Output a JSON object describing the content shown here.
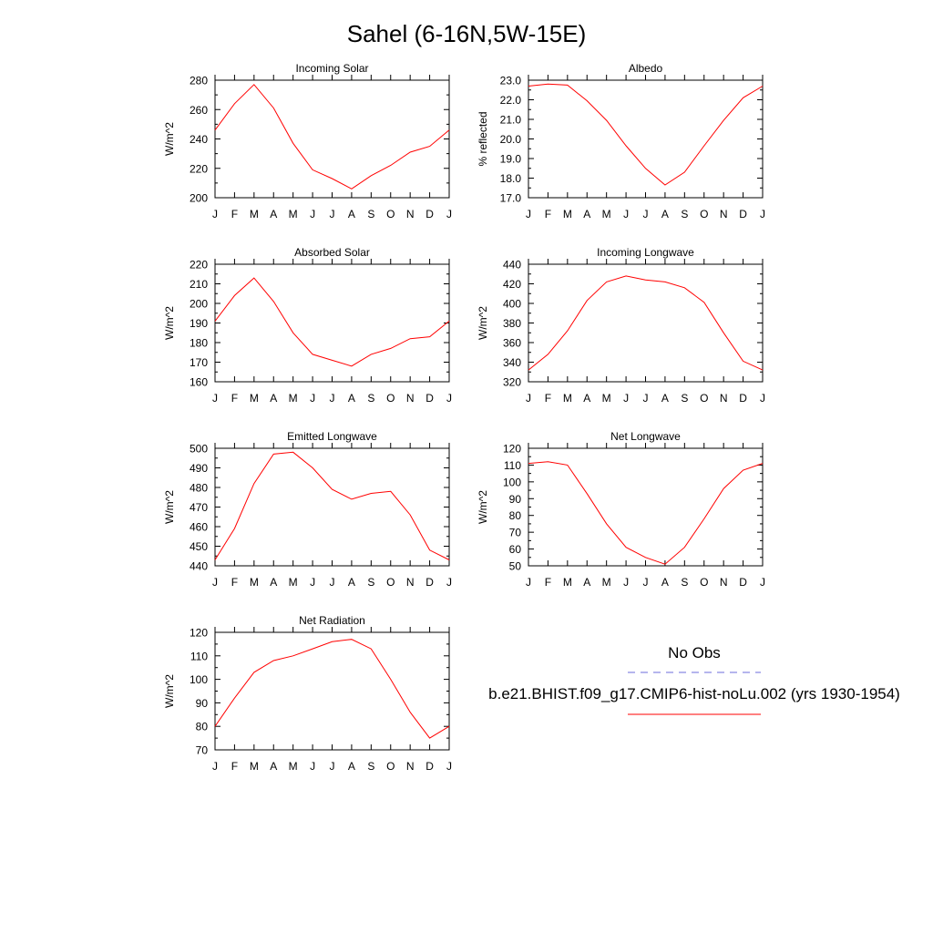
{
  "figure": {
    "title": "Sahel (6-16N,5W-15E)"
  },
  "legend": {
    "obs_label": "No Obs",
    "obs_color": "#6b6bdb",
    "model_label": "b.e21.BHIST.f09_g17.CMIP6-hist-noLu.002 (yrs 1930-1954)",
    "model_color": "#ff0000"
  },
  "chart_data": [
    {
      "type": "line",
      "title": "Incoming Solar",
      "ylabel": "W/m^2",
      "categories": [
        "J",
        "F",
        "M",
        "A",
        "M",
        "J",
        "J",
        "A",
        "S",
        "O",
        "N",
        "D",
        "J"
      ],
      "ylim": [
        200,
        280
      ],
      "yticks": [
        200,
        220,
        240,
        260,
        280
      ],
      "ytick_labels": [
        "200",
        "220",
        "240",
        "260",
        "280"
      ],
      "series": [
        {
          "color": "#ff0000",
          "values": [
            246,
            264,
            277,
            261,
            237,
            219,
            213,
            206,
            215,
            222,
            231,
            235,
            246
          ]
        }
      ]
    },
    {
      "type": "line",
      "title": "Albedo",
      "ylabel": "% reflected",
      "categories": [
        "J",
        "F",
        "M",
        "A",
        "M",
        "J",
        "J",
        "A",
        "S",
        "O",
        "N",
        "D",
        "J"
      ],
      "ylim": [
        17.0,
        23.0
      ],
      "yticks": [
        17,
        18,
        19,
        20,
        21,
        22,
        23
      ],
      "ytick_labels": [
        "17.0",
        "18.0",
        "19.0",
        "20.0",
        "21.0",
        "22.0",
        "23.0"
      ],
      "series": [
        {
          "color": "#ff0000",
          "values": [
            22.7,
            22.8,
            22.75,
            21.95,
            20.95,
            19.65,
            18.5,
            17.65,
            18.3,
            19.65,
            20.95,
            22.1,
            22.7
          ]
        }
      ]
    },
    {
      "type": "line",
      "title": "Absorbed Solar",
      "ylabel": "W/m^2",
      "categories": [
        "J",
        "F",
        "M",
        "A",
        "M",
        "J",
        "J",
        "A",
        "S",
        "O",
        "N",
        "D",
        "J"
      ],
      "ylim": [
        160,
        220
      ],
      "yticks": [
        160,
        170,
        180,
        190,
        200,
        210,
        220
      ],
      "ytick_labels": [
        "160",
        "170",
        "180",
        "190",
        "200",
        "210",
        "220"
      ],
      "series": [
        {
          "color": "#ff0000",
          "values": [
            191,
            204,
            213,
            201,
            185,
            174,
            171,
            168,
            174,
            177,
            182,
            183,
            191
          ]
        }
      ]
    },
    {
      "type": "line",
      "title": "Incoming Longwave",
      "ylabel": "W/m^2",
      "categories": [
        "J",
        "F",
        "M",
        "A",
        "M",
        "J",
        "J",
        "A",
        "S",
        "O",
        "N",
        "D",
        "J"
      ],
      "ylim": [
        320,
        440
      ],
      "yticks": [
        320,
        340,
        360,
        380,
        400,
        420,
        440
      ],
      "ytick_labels": [
        "320",
        "340",
        "360",
        "380",
        "400",
        "420",
        "440"
      ],
      "series": [
        {
          "color": "#ff0000",
          "values": [
            332,
            348,
            372,
            403,
            422,
            428,
            424,
            422,
            416,
            401,
            370,
            341,
            332
          ]
        }
      ]
    },
    {
      "type": "line",
      "title": "Emitted Longwave",
      "ylabel": "W/m^2",
      "categories": [
        "J",
        "F",
        "M",
        "A",
        "M",
        "J",
        "J",
        "A",
        "S",
        "O",
        "N",
        "D",
        "J"
      ],
      "ylim": [
        440,
        500
      ],
      "yticks": [
        440,
        450,
        460,
        470,
        480,
        490,
        500
      ],
      "ytick_labels": [
        "440",
        "450",
        "460",
        "470",
        "480",
        "490",
        "500"
      ],
      "series": [
        {
          "color": "#ff0000",
          "values": [
            443,
            459,
            482,
            497,
            498,
            490,
            479,
            474,
            477,
            478,
            466,
            448,
            443
          ]
        }
      ]
    },
    {
      "type": "line",
      "title": "Net Longwave",
      "ylabel": "W/m^2",
      "categories": [
        "J",
        "F",
        "M",
        "A",
        "M",
        "J",
        "J",
        "A",
        "S",
        "O",
        "N",
        "D",
        "J"
      ],
      "ylim": [
        50,
        120
      ],
      "yticks": [
        50,
        60,
        70,
        80,
        90,
        100,
        110,
        120
      ],
      "ytick_labels": [
        "50",
        "60",
        "70",
        "80",
        "90",
        "100",
        "110",
        "120"
      ],
      "series": [
        {
          "color": "#ff0000",
          "values": [
            111,
            112,
            110,
            93,
            75,
            61,
            55,
            51,
            61,
            78,
            96,
            107,
            111
          ]
        }
      ]
    },
    {
      "type": "line",
      "title": "Net Radiation",
      "ylabel": "W/m^2",
      "categories": [
        "J",
        "F",
        "M",
        "A",
        "M",
        "J",
        "J",
        "A",
        "S",
        "O",
        "N",
        "D",
        "J"
      ],
      "ylim": [
        70,
        120
      ],
      "yticks": [
        70,
        80,
        90,
        100,
        110,
        120
      ],
      "ytick_labels": [
        "70",
        "80",
        "90",
        "100",
        "110",
        "120"
      ],
      "series": [
        {
          "color": "#ff0000",
          "values": [
            80,
            92,
            103,
            108,
            110,
            113,
            116,
            117,
            113,
            100,
            86,
            75,
            80
          ]
        }
      ]
    }
  ]
}
